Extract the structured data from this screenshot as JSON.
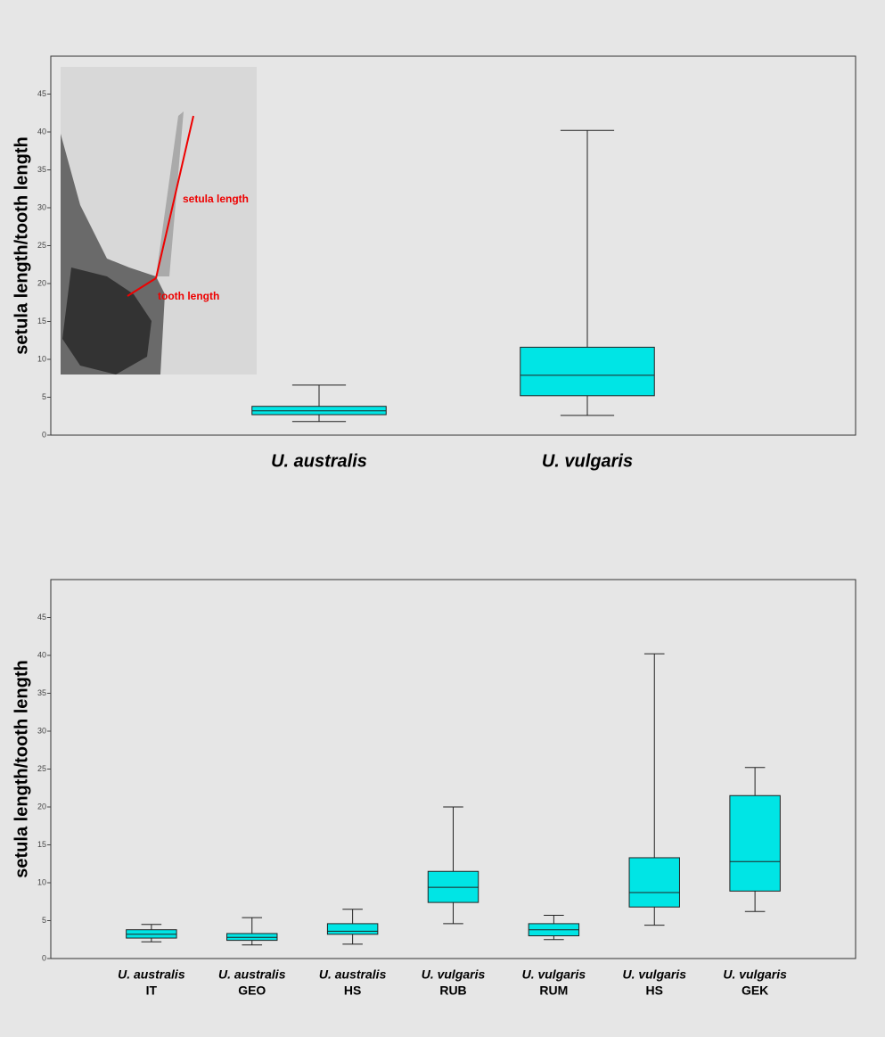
{
  "chart_data": [
    {
      "type": "box",
      "ylabel": "setula length/tooth length",
      "color": "#00e5e5",
      "ylim": [
        0,
        50
      ],
      "yticks": [
        0,
        5,
        10,
        15,
        20,
        25,
        30,
        35,
        40,
        45
      ],
      "categories": [
        [
          "U. australis"
        ],
        [
          "U. vulgaris"
        ]
      ],
      "stats": [
        {
          "min": 1.8,
          "q1": 2.7,
          "median": 3.2,
          "q3": 3.8,
          "max": 6.6
        },
        {
          "min": 2.6,
          "q1": 5.2,
          "median": 7.9,
          "q3": 11.6,
          "max": 40.2
        }
      ],
      "inset_labels": [
        "setula length",
        "tooth length"
      ]
    },
    {
      "type": "box",
      "ylabel": "setula length/tooth length",
      "color": "#00e5e5",
      "ylim": [
        0,
        50
      ],
      "yticks": [
        0,
        5,
        10,
        15,
        20,
        25,
        30,
        35,
        40,
        45
      ],
      "categories": [
        [
          "U. australis",
          "IT"
        ],
        [
          "U. australis",
          "GEO"
        ],
        [
          "U. australis",
          "HS"
        ],
        [
          "U. vulgaris",
          "RUB"
        ],
        [
          "U. vulgaris",
          "RUM"
        ],
        [
          "U. vulgaris",
          "HS"
        ],
        [
          "U. vulgaris",
          "GEK"
        ]
      ],
      "stats": [
        {
          "min": 2.2,
          "q1": 2.7,
          "median": 3.2,
          "q3": 3.8,
          "max": 4.5
        },
        {
          "min": 1.8,
          "q1": 2.4,
          "median": 2.8,
          "q3": 3.3,
          "max": 5.4
        },
        {
          "min": 1.9,
          "q1": 3.2,
          "median": 3.6,
          "q3": 4.6,
          "max": 6.5
        },
        {
          "min": 4.6,
          "q1": 7.4,
          "median": 9.4,
          "q3": 11.5,
          "max": 20
        },
        {
          "min": 2.5,
          "q1": 3.0,
          "median": 3.8,
          "q3": 4.6,
          "max": 5.7
        },
        {
          "min": 4.4,
          "q1": 6.8,
          "median": 8.7,
          "q3": 13.3,
          "max": 40.2
        },
        {
          "min": 6.2,
          "q1": 8.9,
          "median": 12.8,
          "q3": 21.5,
          "max": 25.2
        }
      ]
    }
  ]
}
